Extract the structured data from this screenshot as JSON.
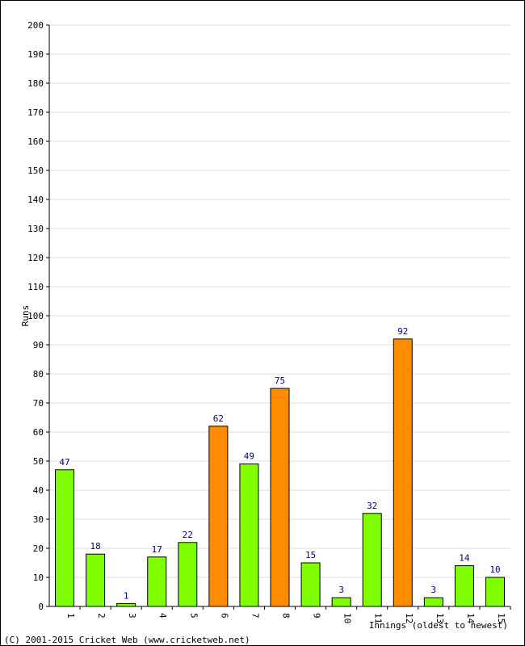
{
  "chart_data": {
    "type": "bar",
    "title": "",
    "xlabel": "Innings (oldest to newest)",
    "ylabel": "Runs",
    "ylim": [
      0,
      200
    ],
    "ytick_step": 10,
    "grid": true,
    "categories": [
      "1",
      "2",
      "3",
      "4",
      "5",
      "6",
      "7",
      "8",
      "9",
      "10",
      "11",
      "12",
      "13",
      "14",
      "15"
    ],
    "values": [
      47,
      18,
      1,
      17,
      22,
      62,
      49,
      75,
      15,
      3,
      32,
      92,
      3,
      14,
      10
    ],
    "highlight": [
      false,
      false,
      false,
      false,
      false,
      true,
      false,
      true,
      false,
      false,
      false,
      true,
      false,
      false,
      false
    ],
    "colors": {
      "normal": "#7fff00",
      "highlight": "#ff8c00",
      "value_label": "#000080",
      "grid": "#dddddd"
    }
  },
  "footer": {
    "copyright": "(C) 2001-2015 Cricket Web (www.cricketweb.net)"
  }
}
